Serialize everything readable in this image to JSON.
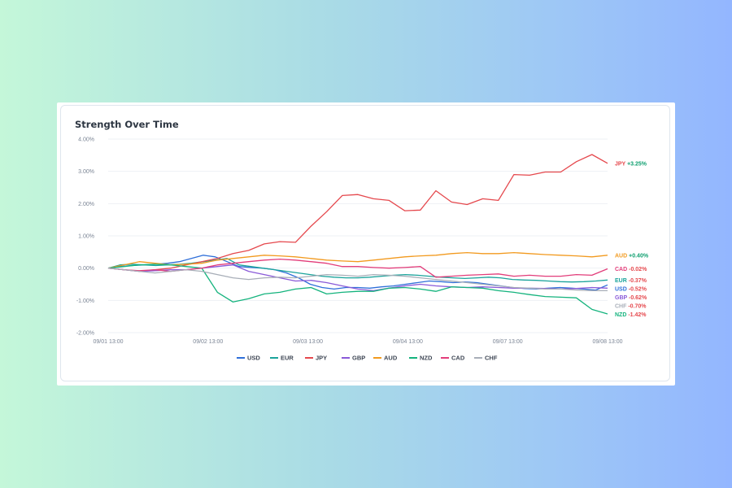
{
  "card": {
    "title": "Strength Over Time"
  },
  "chart_data": {
    "type": "line",
    "title": "Strength Over Time",
    "xlabel": "",
    "ylabel": "",
    "ylim": [
      -2,
      4
    ],
    "y_ticks": [
      "4.00%",
      "3.00%",
      "2.00%",
      "1.00%",
      "0.00%",
      "-1.00%",
      "-2.00%"
    ],
    "x_ticks": [
      "09/01 13:00",
      "09/02 13:00",
      "09/03 13:00",
      "09/04 13:00",
      "09/07 13:00",
      "09/08 13:00"
    ],
    "legend_position": "bottom-center",
    "grid": true,
    "positive_color": "#0d9e6e",
    "negative_color": "#e5484d",
    "series": [
      {
        "name": "USD",
        "color": "#2f6fd9",
        "end_label": "-0.52%",
        "values": [
          0,
          0.05,
          0.08,
          0.1,
          0.12,
          0.15,
          0.2,
          0.3,
          0.4,
          0.35,
          0.2,
          0.05,
          0.02,
          0.0,
          -0.05,
          -0.15,
          -0.3,
          -0.5,
          -0.6,
          -0.65,
          -0.6,
          -0.6,
          -0.62,
          -0.58,
          -0.55,
          -0.5,
          -0.45,
          -0.4,
          -0.42,
          -0.45,
          -0.43,
          -0.45,
          -0.5,
          -0.55,
          -0.6,
          -0.63,
          -0.65,
          -0.62,
          -0.6,
          -0.62,
          -0.65,
          -0.68,
          -0.52
        ]
      },
      {
        "name": "EUR",
        "color": "#1aa39b",
        "end_label": "-0.37%",
        "values": [
          0,
          0.1,
          0.12,
          0.1,
          0.08,
          0.1,
          0.12,
          0.15,
          0.2,
          0.25,
          0.3,
          0.1,
          0.05,
          0.0,
          -0.05,
          -0.1,
          -0.15,
          -0.2,
          -0.25,
          -0.28,
          -0.3,
          -0.3,
          -0.28,
          -0.25,
          -0.22,
          -0.2,
          -0.22,
          -0.25,
          -0.28,
          -0.3,
          -0.32,
          -0.3,
          -0.28,
          -0.3,
          -0.35,
          -0.37,
          -0.38,
          -0.4,
          -0.42,
          -0.43,
          -0.42,
          -0.4,
          -0.37
        ]
      },
      {
        "name": "JPY",
        "color": "#e5484d",
        "end_label": "+3.25%",
        "values": [
          0,
          -0.05,
          -0.1,
          -0.05,
          0.0,
          0.1,
          0.2,
          0.3,
          0.45,
          0.55,
          0.75,
          0.82,
          0.8,
          1.3,
          1.75,
          2.25,
          2.28,
          2.15,
          2.1,
          1.78,
          1.8,
          2.4,
          2.05,
          1.97,
          2.15,
          2.1,
          2.9,
          2.88,
          2.98,
          2.98,
          3.3,
          3.52,
          3.25
        ]
      },
      {
        "name": "GBP",
        "color": "#8a5ad8",
        "end_label": "-0.62%",
        "values": [
          0,
          -0.05,
          -0.1,
          -0.08,
          -0.05,
          -0.05,
          0.0,
          0.05,
          0.1,
          -0.1,
          -0.2,
          -0.3,
          -0.4,
          -0.38,
          -0.45,
          -0.55,
          -0.65,
          -0.7,
          -0.62,
          -0.55,
          -0.5,
          -0.55,
          -0.58,
          -0.6,
          -0.58,
          -0.6,
          -0.62,
          -0.62,
          -0.63,
          -0.65,
          -0.63,
          -0.6,
          -0.62
        ]
      },
      {
        "name": "AUD",
        "color": "#f29a1f",
        "end_label": "+0.40%",
        "values": [
          0,
          0.1,
          0.2,
          0.15,
          0.1,
          0.12,
          0.15,
          0.25,
          0.3,
          0.35,
          0.4,
          0.38,
          0.35,
          0.3,
          0.25,
          0.22,
          0.2,
          0.25,
          0.3,
          0.35,
          0.38,
          0.4,
          0.45,
          0.48,
          0.45,
          0.45,
          0.48,
          0.45,
          0.42,
          0.4,
          0.38,
          0.35,
          0.4
        ]
      },
      {
        "name": "NZD",
        "color": "#14b37d",
        "end_label": "-1.42%",
        "values": [
          0,
          0.05,
          0.1,
          0.12,
          0.1,
          0.05,
          0.0,
          -0.75,
          -1.05,
          -0.95,
          -0.8,
          -0.75,
          -0.65,
          -0.6,
          -0.8,
          -0.75,
          -0.72,
          -0.72,
          -0.62,
          -0.6,
          -0.65,
          -0.72,
          -0.58,
          -0.6,
          -0.62,
          -0.7,
          -0.75,
          -0.82,
          -0.88,
          -0.9,
          -0.92,
          -1.28,
          -1.42
        ]
      },
      {
        "name": "CAD",
        "color": "#e23d7a",
        "end_label": "-0.02%",
        "values": [
          0,
          -0.05,
          -0.08,
          -0.05,
          -0.1,
          -0.05,
          0.0,
          0.1,
          0.15,
          0.2,
          0.25,
          0.28,
          0.25,
          0.2,
          0.15,
          0.05,
          0.05,
          0.02,
          0.0,
          0.02,
          0.05,
          -0.28,
          -0.25,
          -0.22,
          -0.2,
          -0.18,
          -0.25,
          -0.22,
          -0.25,
          -0.25,
          -0.2,
          -0.22,
          -0.02
        ]
      },
      {
        "name": "CHF",
        "color": "#a8aeb8",
        "end_label": "-0.70%",
        "values": [
          0,
          -0.05,
          -0.1,
          -0.15,
          -0.1,
          -0.05,
          -0.1,
          -0.2,
          -0.3,
          -0.35,
          -0.3,
          -0.28,
          -0.3,
          -0.25,
          -0.2,
          -0.22,
          -0.25,
          -0.2,
          -0.22,
          -0.25,
          -0.3,
          -0.35,
          -0.4,
          -0.45,
          -0.5,
          -0.55,
          -0.6,
          -0.62,
          -0.65,
          -0.65,
          -0.68,
          -0.7,
          -0.7
        ]
      }
    ]
  }
}
